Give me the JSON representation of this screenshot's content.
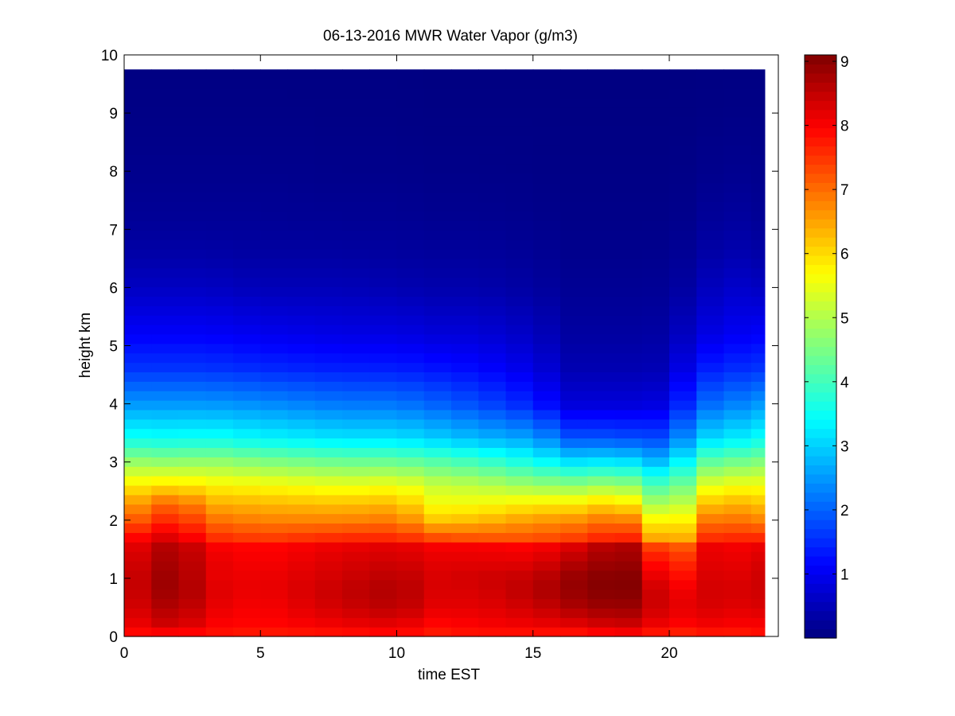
{
  "chart_data": {
    "type": "heatmap",
    "title": "06-13-2016 MWR Water Vapor (g/m3)",
    "xlabel": "time EST",
    "ylabel": "height km",
    "xlim": [
      0,
      24
    ],
    "ylim": [
      0,
      10
    ],
    "x_ticks": [
      0,
      5,
      10,
      15,
      20
    ],
    "y_ticks": [
      0,
      1,
      2,
      3,
      4,
      5,
      6,
      7,
      8,
      9,
      10
    ],
    "colorbar": {
      "colormap": "jet",
      "range": [
        0,
        9.1
      ],
      "ticks": [
        1,
        2,
        3,
        4,
        5,
        6,
        7,
        8,
        9
      ]
    },
    "grid": false,
    "data_extent": {
      "x": [
        0,
        23.5
      ],
      "y": [
        0,
        9.75
      ]
    },
    "time_hours": [
      0.5,
      1.5,
      2.5,
      3.5,
      4.5,
      5.5,
      6.5,
      7.5,
      8.5,
      9.5,
      10.5,
      11.5,
      12.5,
      13.5,
      14.5,
      15.5,
      16.5,
      17.5,
      18.5,
      19.5,
      20.5,
      21.5,
      22.5,
      23.5
    ],
    "profiles": {
      "heights_km": [
        0,
        0.1,
        0.2,
        0.5,
        0.8,
        1.0,
        1.3,
        1.6,
        1.7,
        2.0,
        2.3,
        2.6,
        3.0,
        3.4,
        4.0,
        4.6,
        5.2,
        6.0,
        6.6,
        7.2,
        8.0,
        9.0,
        9.75
      ],
      "reference_time_hours": [
        0,
        2,
        3,
        5,
        8,
        10,
        11.5,
        13,
        15,
        16.5,
        18,
        19,
        20,
        21,
        22,
        23.5
      ],
      "reference_columns": [
        [
          7.3,
          8.0,
          8.0,
          8.2,
          8.3,
          8.3,
          8.2,
          8.0,
          7.8,
          7.0,
          6.4,
          5.8,
          4.8,
          3.6,
          2.5,
          1.6,
          1.1,
          0.6,
          0.35,
          0.2,
          0.12,
          0.06,
          0.03
        ],
        [
          7.4,
          8.2,
          8.5,
          8.8,
          9.0,
          9.0,
          8.9,
          8.8,
          8.4,
          7.8,
          7.2,
          6.0,
          4.7,
          3.5,
          2.5,
          1.6,
          1.1,
          0.6,
          0.35,
          0.2,
          0.12,
          0.06,
          0.03
        ],
        [
          7.3,
          8.0,
          8.0,
          8.2,
          8.3,
          8.2,
          8.2,
          8.0,
          7.6,
          7.0,
          6.4,
          5.8,
          4.8,
          3.6,
          2.5,
          1.6,
          1.1,
          0.6,
          0.35,
          0.2,
          0.12,
          0.06,
          0.03
        ],
        [
          7.2,
          7.9,
          7.9,
          8.0,
          8.1,
          8.1,
          8.0,
          7.9,
          7.4,
          6.8,
          6.3,
          5.7,
          4.6,
          3.4,
          2.4,
          1.5,
          1.0,
          0.5,
          0.3,
          0.2,
          0.12,
          0.06,
          0.03
        ],
        [
          7.3,
          8.0,
          8.1,
          8.4,
          8.5,
          8.4,
          8.3,
          8.1,
          7.6,
          6.8,
          6.2,
          5.5,
          4.4,
          3.2,
          2.2,
          1.4,
          0.9,
          0.5,
          0.3,
          0.18,
          0.1,
          0.05,
          0.03
        ],
        [
          7.4,
          8.1,
          8.2,
          8.6,
          8.7,
          8.6,
          8.4,
          8.2,
          7.6,
          6.9,
          6.3,
          5.6,
          4.4,
          3.2,
          2.2,
          1.4,
          0.9,
          0.45,
          0.28,
          0.18,
          0.1,
          0.05,
          0.03
        ],
        [
          7.2,
          7.9,
          7.9,
          8.2,
          8.3,
          8.3,
          8.2,
          8.0,
          7.3,
          6.2,
          5.6,
          5.2,
          4.2,
          3.0,
          2.0,
          1.3,
          0.8,
          0.4,
          0.25,
          0.15,
          0.08,
          0.04,
          0.02
        ],
        [
          7.3,
          8.0,
          8.0,
          8.2,
          8.3,
          8.4,
          8.2,
          8.0,
          7.2,
          6.3,
          5.6,
          5.1,
          4.0,
          2.8,
          1.8,
          1.2,
          0.8,
          0.4,
          0.25,
          0.15,
          0.08,
          0.04,
          0.02
        ],
        [
          7.3,
          8.0,
          8.1,
          8.4,
          8.6,
          8.5,
          8.2,
          7.9,
          7.2,
          6.6,
          5.8,
          4.8,
          3.6,
          2.6,
          1.4,
          0.9,
          0.6,
          0.3,
          0.2,
          0.12,
          0.07,
          0.04,
          0.02
        ],
        [
          7.3,
          8.0,
          8.2,
          8.7,
          8.9,
          8.9,
          8.6,
          8.2,
          7.4,
          6.7,
          5.8,
          4.7,
          3.2,
          1.9,
          0.8,
          0.45,
          0.3,
          0.18,
          0.12,
          0.08,
          0.05,
          0.03,
          0.02
        ],
        [
          7.4,
          8.2,
          8.4,
          8.9,
          9.1,
          9.1,
          8.9,
          8.7,
          7.7,
          7.0,
          6.1,
          4.9,
          3.3,
          1.9,
          0.8,
          0.45,
          0.3,
          0.18,
          0.12,
          0.08,
          0.05,
          0.03,
          0.02
        ],
        [
          7.4,
          8.2,
          8.4,
          8.8,
          9.0,
          9.0,
          8.8,
          8.6,
          7.6,
          6.7,
          5.6,
          4.6,
          3.1,
          1.8,
          0.8,
          0.45,
          0.3,
          0.18,
          0.12,
          0.08,
          0.05,
          0.03,
          0.02
        ],
        [
          7.0,
          7.7,
          7.8,
          8.0,
          7.8,
          7.4,
          6.9,
          6.0,
          5.3,
          4.8,
          4.2,
          3.6,
          2.6,
          1.8,
          0.9,
          0.5,
          0.35,
          0.2,
          0.13,
          0.08,
          0.05,
          0.03,
          0.02
        ],
        [
          7.3,
          8.0,
          8.1,
          8.4,
          8.4,
          8.4,
          8.3,
          8.2,
          7.5,
          6.8,
          6.0,
          5.3,
          4.2,
          3.0,
          2.0,
          1.3,
          0.8,
          0.4,
          0.25,
          0.15,
          0.08,
          0.04,
          0.02
        ],
        [
          7.2,
          7.9,
          8.0,
          8.2,
          8.3,
          8.2,
          8.1,
          8.0,
          7.6,
          7.0,
          6.4,
          5.6,
          4.4,
          3.2,
          2.2,
          1.5,
          1.0,
          0.7,
          0.45,
          0.3,
          0.15,
          0.06,
          0.03
        ],
        [
          7.3,
          8.0,
          8.0,
          8.3,
          8.4,
          8.4,
          8.3,
          8.1,
          7.6,
          6.8,
          6.2,
          5.6,
          4.6,
          3.5,
          2.5,
          1.6,
          1.1,
          0.6,
          0.35,
          0.2,
          0.12,
          0.06,
          0.03
        ]
      ]
    }
  }
}
